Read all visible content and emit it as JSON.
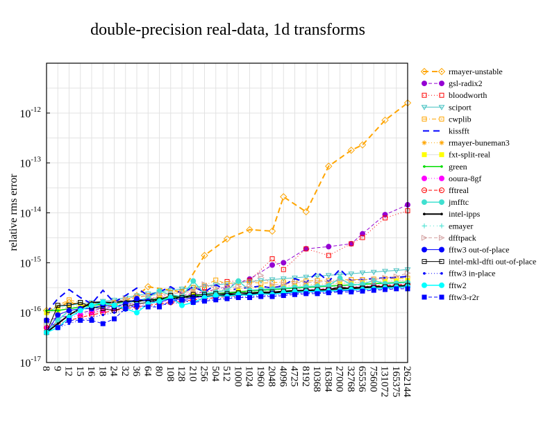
{
  "chart_data": {
    "type": "line",
    "title": "double-precision real-data, 1d transforms",
    "xlabel": "",
    "ylabel": "relative rms error",
    "yscale": "log",
    "ylim": [
      1e-17,
      1e-11
    ],
    "y_ticks": [
      {
        "value": 1e-17,
        "base": "10",
        "exp": "-17"
      },
      {
        "value": 1e-16,
        "base": "10",
        "exp": "-16"
      },
      {
        "value": 1e-15,
        "base": "10",
        "exp": "-15"
      },
      {
        "value": 1e-14,
        "base": "10",
        "exp": "-14"
      },
      {
        "value": 1e-13,
        "base": "10",
        "exp": "-13"
      },
      {
        "value": 1e-12,
        "base": "10",
        "exp": "-12"
      }
    ],
    "grid": true,
    "legend_position": "right",
    "categories": [
      "8",
      "9",
      "12",
      "15",
      "16",
      "18",
      "24",
      "32",
      "36",
      "64",
      "80",
      "108",
      "128",
      "210",
      "256",
      "504",
      "512",
      "1000",
      "1024",
      "1960",
      "2048",
      "4096",
      "4725",
      "8192",
      "10368",
      "16384",
      "27000",
      "32768",
      "65536",
      "75600",
      "131072",
      "165375",
      "262144"
    ],
    "series": [
      {
        "name": "rmayer-unstable",
        "color": "#ffa500",
        "dash": "8,5",
        "marker": "diamond-open",
        "width": 2,
        "values": [
          1.1e-16,
          null,
          1.6e-16,
          null,
          1.3e-16,
          null,
          1.4e-16,
          null,
          2.2e-16,
          3.3e-16,
          null,
          null,
          2.6e-16,
          null,
          1.4e-15,
          null,
          3e-15,
          null,
          4.6e-15,
          null,
          4.3e-15,
          2.1e-14,
          null,
          1.05e-14,
          null,
          8.6e-14,
          null,
          1.8e-13,
          2.3e-13,
          null,
          7.2e-13,
          null,
          1.6e-12
        ]
      },
      {
        "name": "gsl-radix2",
        "color": "#9400d3",
        "dash": "5,3",
        "marker": "circle",
        "width": 1,
        "values": [
          7e-17,
          null,
          null,
          null,
          1.1e-16,
          null,
          1.3e-16,
          null,
          1.6e-16,
          1.9e-16,
          null,
          null,
          2.2e-16,
          null,
          2.6e-16,
          null,
          3.3e-16,
          null,
          4.7e-16,
          null,
          9e-16,
          1e-15,
          null,
          1.9e-15,
          null,
          2.1e-15,
          null,
          2.4e-15,
          3.8e-15,
          null,
          9.2e-15,
          null,
          1.45e-14
        ]
      },
      {
        "name": "bloodworth",
        "color": "#ff0000",
        "dash": "1,3",
        "marker": "square-open",
        "width": 1,
        "values": [
          null,
          null,
          null,
          null,
          1e-16,
          null,
          1.2e-16,
          null,
          1.6e-16,
          1.9e-16,
          null,
          null,
          2.6e-16,
          null,
          3.2e-16,
          null,
          4.2e-16,
          null,
          4.4e-16,
          null,
          1.2e-15,
          7.3e-16,
          null,
          1.9e-15,
          null,
          1.4e-15,
          null,
          2.4e-15,
          3.2e-15,
          null,
          7.9e-15,
          null,
          1.1e-14
        ]
      },
      {
        "name": "sciport",
        "color": "#40c0c0",
        "dash": "",
        "marker": "triangle-down",
        "width": 1,
        "values": [
          1e-16,
          1.3e-16,
          1.4e-16,
          1.5e-16,
          1.6e-16,
          1.7e-16,
          1.8e-16,
          2e-16,
          2.2e-16,
          2.4e-16,
          2.6e-16,
          2.8e-16,
          3e-16,
          3.2e-16,
          3.4e-16,
          3.6e-16,
          3.8e-16,
          4e-16,
          4.2e-16,
          4.4e-16,
          4.6e-16,
          4.8e-16,
          5e-16,
          5.2e-16,
          5.4e-16,
          5.6e-16,
          5.8e-16,
          6e-16,
          6.3e-16,
          6.5e-16,
          6.8e-16,
          7e-16,
          7.3e-16
        ]
      },
      {
        "name": "cwplib",
        "color": "#ffa500",
        "dash": "6,3,1,3",
        "marker": "square-open",
        "width": 1,
        "values": [
          1e-16,
          1.4e-16,
          1.8e-16,
          1.6e-16,
          1.5e-16,
          1.4e-16,
          1.6e-16,
          1.8e-16,
          2e-16,
          2.2e-16,
          2.4e-16,
          2.5e-16,
          2.6e-16,
          3.2e-16,
          3.5e-16,
          4.5e-16,
          3.8e-16,
          4e-16,
          4.1e-16,
          3.9e-16,
          4e-16,
          4.1e-16,
          4.2e-16,
          4.3e-16,
          4.4e-16,
          4.4e-16,
          4.5e-16,
          4.6e-16,
          4.6e-16,
          4.7e-16,
          4.8e-16,
          4.8e-16,
          4.9e-16
        ]
      },
      {
        "name": "kissfft",
        "color": "#0000ff",
        "dash": "9,6",
        "marker": "none",
        "width": 2,
        "values": [
          1e-16,
          1.9e-16,
          2.9e-16,
          2e-16,
          1.5e-16,
          2.8e-16,
          1.6e-16,
          2.2e-16,
          3.1e-16,
          2.2e-16,
          2.6e-16,
          3.3e-16,
          2.4e-16,
          3.3e-16,
          2.6e-16,
          3.6e-16,
          2.8e-16,
          3e-16,
          3.2e-16,
          3.4e-16,
          3.1e-16,
          3.5e-16,
          4.8e-16,
          4e-16,
          6.5e-16,
          4.2e-16,
          7.4e-16,
          4.4e-16,
          4.6e-16,
          4.8e-16,
          5e-16,
          5.1e-16,
          5.3e-16
        ]
      },
      {
        "name": "rmayer-buneman3",
        "color": "#ffa500",
        "dash": "1,3",
        "marker": "star",
        "width": 1,
        "values": [
          1e-16,
          1.2e-16,
          1.3e-16,
          1.4e-16,
          1.5e-16,
          1.6e-16,
          1.6e-16,
          1.7e-16,
          1.8e-16,
          1.9e-16,
          2e-16,
          2.1e-16,
          2.2e-16,
          2.6e-16,
          2.6e-16,
          2.8e-16,
          2.9e-16,
          3e-16,
          3.1e-16,
          3.2e-16,
          3.3e-16,
          3.4e-16,
          3.5e-16,
          3.6e-16,
          3.7e-16,
          3.8e-16,
          3.9e-16,
          4e-16,
          4.1e-16,
          4.2e-16,
          4.3e-16,
          4.4e-16,
          4.5e-16
        ]
      },
      {
        "name": "fxt-split-real",
        "color": "#ffff00",
        "dash": "",
        "marker": "square",
        "width": 1,
        "line": "#dddddd",
        "values": [
          1e-16,
          1.1e-16,
          1.2e-16,
          1.3e-16,
          1.4e-16,
          1.5e-16,
          1.5e-16,
          1.6e-16,
          1.7e-16,
          1.8e-16,
          1.9e-16,
          2e-16,
          2.1e-16,
          2.2e-16,
          2.3e-16,
          2.5e-16,
          2.6e-16,
          2.7e-16,
          2.8e-16,
          3e-16,
          3.1e-16,
          3.2e-16,
          3.3e-16,
          3.4e-16,
          3.5e-16,
          3.6e-16,
          3.8e-16,
          3.9e-16,
          4e-16,
          4.1e-16,
          4.2e-16,
          4.3e-16,
          4.4e-16
        ]
      },
      {
        "name": "green",
        "color": "#00dd00",
        "dash": "",
        "marker": "dot",
        "width": 1.5,
        "values": [
          1.1e-16,
          1.1e-16,
          1.2e-16,
          1.3e-16,
          1.4e-16,
          1.5e-16,
          1.5e-16,
          1.6e-16,
          1.7e-16,
          1.8e-16,
          1.9e-16,
          2e-16,
          2.1e-16,
          2.2e-16,
          2.3e-16,
          2.4e-16,
          2.5e-16,
          2.6e-16,
          2.7e-16,
          2.8e-16,
          2.9e-16,
          3e-16,
          3.1e-16,
          3.2e-16,
          3.3e-16,
          3.4e-16,
          3.5e-16,
          3.6e-16,
          3.7e-16,
          3.8e-16,
          3.9e-16,
          4e-16,
          4.1e-16
        ]
      },
      {
        "name": "ooura-8gf",
        "color": "#ff00ff",
        "dash": "1,3",
        "marker": "circle",
        "width": 1,
        "values": [
          5e-17,
          7e-17,
          8e-17,
          9e-17,
          1e-16,
          1.1e-16,
          1.2e-16,
          1.3e-16,
          1.4e-16,
          1.5e-16,
          1.6e-16,
          1.7e-16,
          1.8e-16,
          1.9e-16,
          2e-16,
          2.1e-16,
          2.2e-16,
          2.3e-16,
          2.4e-16,
          2.5e-16,
          2.6e-16,
          2.7e-16,
          2.8e-16,
          2.9e-16,
          3e-16,
          3.1e-16,
          3.2e-16,
          3.3e-16,
          3.4e-16,
          3.5e-16,
          3.6e-16,
          3.7e-16,
          3.8e-16
        ]
      },
      {
        "name": "fftreal",
        "color": "#ff0000",
        "dash": "5,3",
        "marker": "circle-open",
        "width": 1,
        "values": [
          5e-17,
          6e-17,
          7e-17,
          8e-17,
          9e-17,
          1e-16,
          1.1e-16,
          1.2e-16,
          1.3e-16,
          1.4e-16,
          1.5e-16,
          1.6e-16,
          1.7e-16,
          1.8e-16,
          1.9e-16,
          2e-16,
          2.1e-16,
          2.2e-16,
          2.3e-16,
          2.4e-16,
          2.5e-16,
          2.6e-16,
          2.7e-16,
          2.8e-16,
          2.9e-16,
          3e-16,
          3.1e-16,
          3.2e-16,
          3.3e-16,
          3.4e-16,
          3.5e-16,
          3.6e-16,
          3.7e-16
        ]
      },
      {
        "name": "jmfftc",
        "color": "#40e0d0",
        "dash": "",
        "marker": "circle",
        "width": 1.5,
        "values": [
          4e-17,
          7e-17,
          1.1e-16,
          1.2e-16,
          1.3e-16,
          1.4e-16,
          1.5e-16,
          1.6e-16,
          1.7e-16,
          2e-16,
          2.7e-16,
          2.3e-16,
          2.1e-16,
          4.3e-16,
          2.4e-16,
          2.6e-16,
          2.8e-16,
          4.3e-16,
          2.8e-16,
          2.9e-16,
          3e-16,
          3.1e-16,
          3.2e-16,
          3.3e-16,
          3.4e-16,
          3.5e-16,
          4.9e-16,
          3.6e-16,
          3.7e-16,
          4.4e-16,
          3.8e-16,
          3.9e-16,
          4e-16
        ]
      },
      {
        "name": "intel-ipps",
        "color": "#000000",
        "dash": "",
        "marker": "dot",
        "width": 2,
        "values": [
          4e-17,
          6e-17,
          9e-17,
          1.2e-16,
          1.6e-16,
          1.6e-16,
          1.6e-16,
          1.7e-16,
          1.7e-16,
          1.8e-16,
          1.8e-16,
          1.9e-16,
          2e-16,
          2.1e-16,
          2.1e-16,
          2.2e-16,
          2.3e-16,
          2.3e-16,
          2.4e-16,
          2.5e-16,
          2.5e-16,
          2.6e-16,
          2.7e-16,
          2.8e-16,
          2.8e-16,
          2.9e-16,
          3e-16,
          3.1e-16,
          3.2e-16,
          3.3e-16,
          3.3e-16,
          3.4e-16,
          3.5e-16
        ]
      },
      {
        "name": "emayer",
        "color": "#40e0d0",
        "dash": "1,4",
        "marker": "plus",
        "width": 1,
        "values": [
          6e-17,
          8e-17,
          1e-16,
          1.1e-16,
          1.2e-16,
          1.3e-16,
          1.4e-16,
          1.5e-16,
          1.6e-16,
          1.7e-16,
          1.8e-16,
          1.9e-16,
          2e-16,
          2.1e-16,
          2.2e-16,
          2.3e-16,
          2.4e-16,
          2.5e-16,
          2.6e-16,
          2.7e-16,
          2.8e-16,
          2.9e-16,
          3e-16,
          3.1e-16,
          3.2e-16,
          3.3e-16,
          3.4e-16,
          3.5e-16,
          3.6e-16,
          3.7e-16,
          3.8e-16,
          3.9e-16,
          4e-16
        ]
      },
      {
        "name": "dfftpack",
        "color": "#d2a0a0",
        "dash": "5,3",
        "marker": "triangle-right-open",
        "width": 1,
        "values": [
          6e-17,
          9e-17,
          1.1e-16,
          1.2e-16,
          1.3e-16,
          1.4e-16,
          1.6e-16,
          1.9e-16,
          2.1e-16,
          2.2e-16,
          2.3e-16,
          2.4e-16,
          2.5e-16,
          2.7e-16,
          3.7e-16,
          3.1e-16,
          3.2e-16,
          3.3e-16,
          3.4e-16,
          5.6e-16,
          3.6e-16,
          3.7e-16,
          4e-16,
          4e-16,
          4.1e-16,
          4.2e-16,
          4.3e-16,
          4.4e-16,
          4.5e-16,
          4.6e-16,
          5e-16,
          5.3e-16,
          6.2e-16
        ]
      },
      {
        "name": "fftw3 out-of-place",
        "color": "#0000ff",
        "dash": "",
        "marker": "circle",
        "width": 1,
        "values": [
          4e-17,
          9e-17,
          1.1e-16,
          1.2e-16,
          1.2e-16,
          1.4e-16,
          1.3e-16,
          1.5e-16,
          1.9e-16,
          1.7e-16,
          1.6e-16,
          1.9e-16,
          1.8e-16,
          2e-16,
          2.1e-16,
          2.1e-16,
          2.2e-16,
          2.2e-16,
          2.3e-16,
          2.3e-16,
          2.4e-16,
          2.4e-16,
          2.5e-16,
          2.6e-16,
          2.6e-16,
          2.7e-16,
          2.7e-16,
          2.8e-16,
          2.9e-16,
          3e-16,
          3.1e-16,
          3.2e-16,
          3.3e-16
        ]
      },
      {
        "name": "intel-mkl-dfti out-of-place",
        "color": "#000000",
        "dash": "",
        "marker": "square-open",
        "width": 1,
        "values": [
          4e-17,
          1.4e-16,
          1.4e-16,
          1.6e-16,
          1.3e-16,
          1.2e-16,
          1.1e-16,
          1.3e-16,
          1.5e-16,
          1.6e-16,
          1.8e-16,
          2.2e-16,
          2e-16,
          2.3e-16,
          2.3e-16,
          2.4e-16,
          2.4e-16,
          2.5e-16,
          2.5e-16,
          2.6e-16,
          2.6e-16,
          2.7e-16,
          2.8e-16,
          2.8e-16,
          2.9e-16,
          2.9e-16,
          3.3e-16,
          3e-16,
          3.1e-16,
          3.2e-16,
          3.3e-16,
          3.4e-16,
          3.5e-16
        ]
      },
      {
        "name": "fftw3 in-place",
        "color": "#0000ff",
        "dash": "1,3",
        "marker": "dot",
        "width": 1,
        "values": [
          4e-17,
          5e-17,
          6e-17,
          7e-17,
          8e-17,
          9e-17,
          1e-16,
          1.1e-16,
          1.2e-16,
          1.3e-16,
          1.4e-16,
          1.5e-16,
          1.6e-16,
          1.7e-16,
          1.8e-16,
          1.9e-16,
          2e-16,
          2.1e-16,
          2.1e-16,
          2.2e-16,
          2.2e-16,
          2.3e-16,
          2.4e-16,
          2.5e-16,
          2.5e-16,
          2.6e-16,
          2.7e-16,
          2.8e-16,
          2.8e-16,
          2.9e-16,
          3e-16,
          3.1e-16,
          3.2e-16
        ]
      },
      {
        "name": "fftw2",
        "color": "#00ffff",
        "dash": "",
        "marker": "circle",
        "width": 1.5,
        "values": [
          4e-17,
          5e-17,
          8e-17,
          1.1e-16,
          1.4e-16,
          1.6e-16,
          1.4e-16,
          1.2e-16,
          1e-16,
          1.5e-16,
          1.7e-16,
          2e-16,
          1.4e-16,
          1.6e-16,
          2e-16,
          2.2e-16,
          2.1e-16,
          2.3e-16,
          2.2e-16,
          2.4e-16,
          2.3e-16,
          2.5e-16,
          2.6e-16,
          2.6e-16,
          2.7e-16,
          2.7e-16,
          2.8e-16,
          2.9e-16,
          2.9e-16,
          3e-16,
          3.1e-16,
          3.2e-16,
          3.3e-16
        ]
      },
      {
        "name": "fftw3-r2r",
        "color": "#0000ff",
        "dash": "5,3",
        "marker": "square",
        "width": 1,
        "values": [
          7e-17,
          5e-17,
          7e-17,
          7e-17,
          7e-17,
          6e-17,
          7.5e-17,
          1.2e-16,
          1.4e-16,
          1.3e-16,
          1.3e-16,
          1.7e-16,
          1.8e-16,
          1.6e-16,
          1.7e-16,
          1.8e-16,
          1.9e-16,
          2e-16,
          2e-16,
          2.1e-16,
          2.1e-16,
          2.2e-16,
          2.3e-16,
          2.4e-16,
          2.4e-16,
          2.5e-16,
          2.6e-16,
          2.6e-16,
          2.7e-16,
          2.8e-16,
          2.9e-16,
          3e-16,
          3e-16
        ]
      }
    ]
  }
}
